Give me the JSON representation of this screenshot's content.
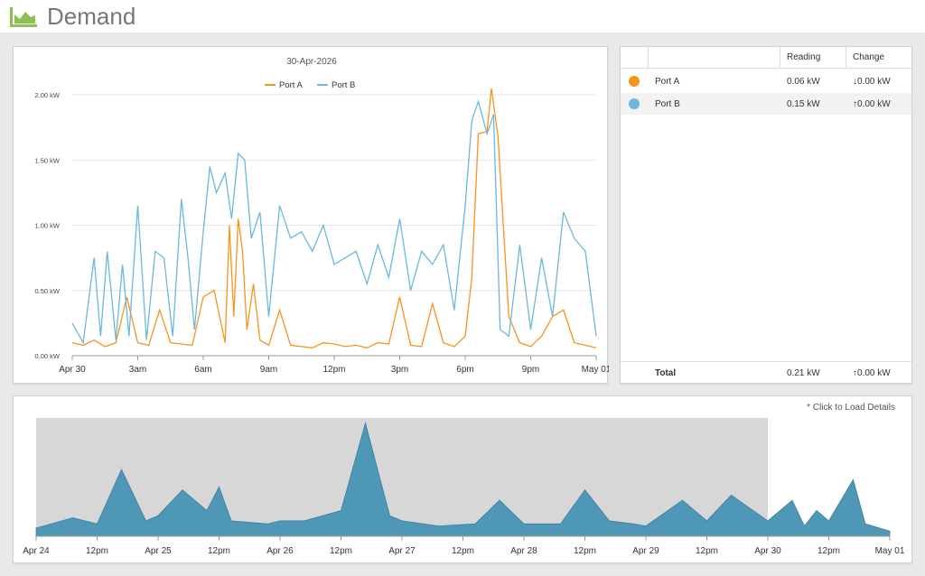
{
  "header": {
    "title": "Demand",
    "icon": "area-chart-icon",
    "icon_color": "#8cc152"
  },
  "main_chart": {
    "date_title": "30-Apr-2026"
  },
  "table": {
    "columns": [
      "",
      "",
      "Reading",
      "Change"
    ],
    "rows": [
      {
        "name": "Port A",
        "color": "#f7941d",
        "reading": "0.06 kW",
        "change": "↓0.00 kW"
      },
      {
        "name": "Port B",
        "color": "#6bb9dc",
        "reading": "0.15 kW",
        "change": "↑0.00 kW"
      }
    ],
    "total": {
      "label": "Total",
      "reading": "0.21 kW",
      "change": "↑0.00 kW"
    }
  },
  "navigator": {
    "hint": "* Click to Load Details",
    "color": "#4f97b6"
  },
  "chart_data": [
    {
      "type": "line",
      "title": "30-Apr-2026",
      "xlabel": "",
      "ylabel": "",
      "x_ticks": [
        "Apr 30",
        "3am",
        "6am",
        "9am",
        "12pm",
        "3pm",
        "6pm",
        "9pm",
        "May 01"
      ],
      "y_ticks": [
        "0.00 kW",
        "0.50 kW",
        "1.00 kW",
        "1.50 kW",
        "2.00 kW"
      ],
      "ylim": [
        0,
        2.0
      ],
      "xlim_hours": [
        0,
        24
      ],
      "legend": "top-center",
      "grid": true,
      "series": [
        {
          "name": "Port A",
          "color": "#f7941d",
          "x": [
            0,
            0.5,
            1,
            1.5,
            2,
            2.5,
            3,
            3.5,
            4,
            4.5,
            5,
            5.5,
            6,
            6.5,
            7,
            7.2,
            7.4,
            7.6,
            7.8,
            8,
            8.3,
            8.6,
            9,
            9.5,
            10,
            10.5,
            11,
            11.5,
            12,
            12.5,
            13,
            13.5,
            14,
            14.5,
            15,
            15.5,
            16,
            16.5,
            17,
            17.5,
            18,
            18.3,
            18.6,
            19,
            19.2,
            19.5,
            20,
            20.5,
            21,
            21.5,
            22,
            22.5,
            23,
            23.5,
            24
          ],
          "values": [
            0.1,
            0.08,
            0.12,
            0.07,
            0.1,
            0.45,
            0.1,
            0.08,
            0.35,
            0.1,
            0.09,
            0.08,
            0.45,
            0.5,
            0.1,
            1.0,
            0.3,
            1.05,
            0.8,
            0.2,
            0.55,
            0.12,
            0.08,
            0.35,
            0.08,
            0.07,
            0.06,
            0.1,
            0.09,
            0.07,
            0.08,
            0.06,
            0.1,
            0.09,
            0.45,
            0.08,
            0.07,
            0.4,
            0.1,
            0.07,
            0.15,
            0.6,
            1.7,
            1.72,
            2.05,
            1.68,
            0.3,
            0.1,
            0.07,
            0.15,
            0.3,
            0.35,
            0.1,
            0.08,
            0.06
          ]
        },
        {
          "name": "Port B",
          "color": "#6bb9dc",
          "x": [
            0,
            0.5,
            1,
            1.3,
            1.6,
            2,
            2.3,
            2.6,
            3,
            3.4,
            3.8,
            4.2,
            4.6,
            5,
            5.3,
            5.6,
            6,
            6.3,
            6.6,
            7,
            7.3,
            7.6,
            7.9,
            8.2,
            8.6,
            9,
            9.5,
            10,
            10.5,
            11,
            11.5,
            12,
            12.5,
            13,
            13.5,
            14,
            14.5,
            15,
            15.5,
            16,
            16.5,
            17,
            17.5,
            18,
            18.3,
            18.6,
            19,
            19.3,
            19.6,
            20,
            20.5,
            21,
            21.5,
            22,
            22.5,
            23,
            23.5,
            24
          ],
          "values": [
            0.25,
            0.1,
            0.75,
            0.15,
            0.8,
            0.12,
            0.7,
            0.15,
            1.15,
            0.12,
            0.8,
            0.75,
            0.15,
            1.2,
            0.75,
            0.2,
            0.95,
            1.45,
            1.25,
            1.4,
            1.05,
            1.55,
            1.5,
            0.9,
            1.1,
            0.3,
            1.15,
            0.9,
            0.95,
            0.8,
            1.0,
            0.7,
            0.75,
            0.8,
            0.55,
            0.85,
            0.6,
            1.05,
            0.5,
            0.8,
            0.7,
            0.85,
            0.35,
            1.15,
            1.8,
            1.95,
            1.7,
            1.85,
            0.2,
            0.15,
            0.85,
            0.2,
            0.75,
            0.3,
            1.1,
            0.9,
            0.8,
            0.15
          ]
        }
      ]
    },
    {
      "type": "area",
      "title": "",
      "xlabel": "",
      "ylabel": "",
      "x_ticks": [
        "Apr 24",
        "12pm",
        "Apr 25",
        "12pm",
        "Apr 26",
        "12pm",
        "Apr 27",
        "12pm",
        "Apr 28",
        "12pm",
        "Apr 29",
        "12pm",
        "Apr 30",
        "12pm",
        "May 01"
      ],
      "selected_range_days": [
        0,
        6
      ],
      "series": [
        {
          "name": "",
          "x": [
            0,
            0.3,
            0.5,
            0.7,
            0.9,
            1.0,
            1.2,
            1.4,
            1.5,
            1.6,
            1.9,
            2.0,
            2.2,
            2.5,
            2.7,
            2.9,
            3.0,
            3.3,
            3.6,
            3.8,
            4.0,
            4.3,
            4.5,
            4.7,
            4.9,
            5.0,
            5.3,
            5.5,
            5.7,
            6.0,
            6.2,
            6.3,
            6.4,
            6.5,
            6.7,
            6.8,
            7.0
          ],
          "values": [
            0.08,
            0.18,
            0.12,
            0.65,
            0.15,
            0.2,
            0.45,
            0.25,
            0.48,
            0.15,
            0.12,
            0.15,
            0.15,
            0.25,
            1.1,
            0.2,
            0.15,
            0.1,
            0.12,
            0.35,
            0.12,
            0.12,
            0.45,
            0.15,
            0.12,
            0.1,
            0.35,
            0.15,
            0.4,
            0.15,
            0.35,
            0.1,
            0.25,
            0.15,
            0.55,
            0.12,
            0.05
          ]
        }
      ]
    }
  ]
}
